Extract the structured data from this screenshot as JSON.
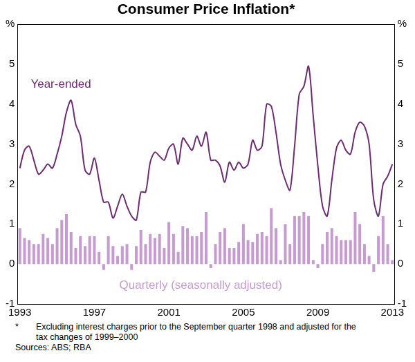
{
  "chart_data": {
    "type": "bar",
    "title": "Consumer Price Inflation*",
    "footnote_marker": "*",
    "footnote": "Excluding interest charges prior to the September quarter 1998 and adjusted for the tax changes of 1999–2000",
    "sources": "Sources: ABS; RBA",
    "categories": [
      "1993",
      null,
      null,
      null,
      null,
      null,
      null,
      null,
      null,
      null,
      null,
      null,
      null,
      null,
      null,
      null,
      "1997",
      null,
      null,
      null,
      null,
      null,
      null,
      null,
      null,
      null,
      null,
      null,
      null,
      null,
      null,
      null,
      "2001",
      null,
      null,
      null,
      null,
      null,
      null,
      null,
      null,
      null,
      null,
      null,
      null,
      null,
      null,
      null,
      "2005",
      null,
      null,
      null,
      null,
      null,
      null,
      null,
      null,
      null,
      null,
      null,
      null,
      null,
      null,
      null,
      "2009",
      null,
      null,
      null,
      null,
      null,
      null,
      null,
      null,
      null,
      null,
      null,
      null,
      null,
      null,
      null,
      "2013"
    ],
    "series": [
      {
        "name": "Year-ended",
        "type": "line",
        "color": "#6e2a72",
        "values": [
          2.4,
          2.85,
          2.95,
          2.6,
          2.25,
          2.35,
          2.5,
          2.4,
          2.75,
          3.2,
          3.8,
          4.1,
          3.5,
          3.2,
          2.35,
          2.25,
          2.65,
          2.1,
          1.55,
          1.55,
          1.15,
          1.45,
          1.75,
          1.45,
          1.2,
          1.1,
          1.8,
          1.8,
          2.55,
          2.8,
          2.7,
          2.6,
          2.9,
          3.0,
          2.5,
          3.15,
          3.0,
          2.85,
          3.2,
          2.95,
          3.3,
          2.6,
          2.6,
          2.45,
          2.05,
          2.55,
          2.35,
          2.55,
          2.4,
          2.5,
          3.1,
          2.85,
          2.95,
          4.0,
          3.95,
          3.3,
          2.5,
          2.1,
          1.85,
          2.95,
          4.25,
          4.45,
          4.95,
          3.7,
          2.45,
          1.45,
          1.2,
          2.1,
          2.9,
          3.1,
          2.85,
          2.75,
          3.3,
          3.55,
          3.45,
          3.0,
          1.6,
          1.2,
          2.0,
          2.2,
          2.5
        ]
      },
      {
        "name": "Quarterly (seasonally adjusted)",
        "type": "bar",
        "color": "#c79bd2",
        "values": [
          0.9,
          0.65,
          0.6,
          0.5,
          0.5,
          0.75,
          0.65,
          0.5,
          0.9,
          1.1,
          1.25,
          0.8,
          0.4,
          0.7,
          0.45,
          0.7,
          0.7,
          0.3,
          -0.15,
          0.7,
          0.45,
          0.2,
          0.45,
          0.5,
          -0.15,
          0.45,
          0.85,
          0.5,
          0.75,
          0.65,
          0.75,
          0.4,
          1.05,
          0.75,
          0.3,
          0.95,
          0.9,
          0.7,
          0.7,
          0.8,
          1.3,
          -0.1,
          0.5,
          0.8,
          0.9,
          0.4,
          0.4,
          0.55,
          1.0,
          0.6,
          0.55,
          0.75,
          0.8,
          0.7,
          1.4,
          0.9,
          0.1,
          1.0,
          0.5,
          1.2,
          1.2,
          1.3,
          1.2,
          0.1,
          -0.1,
          0.5,
          0.8,
          0.9,
          0.7,
          0.6,
          0.6,
          0.6,
          1.3,
          1.0,
          0.5,
          0.2,
          -0.2,
          0.7,
          1.2,
          0.5,
          0.1
        ]
      }
    ],
    "ylim": [
      -1,
      6
    ],
    "yticks": [
      -1,
      0,
      1,
      2,
      3,
      4,
      5,
      {
        "value": 6,
        "label": "%"
      }
    ],
    "grid": false
  }
}
